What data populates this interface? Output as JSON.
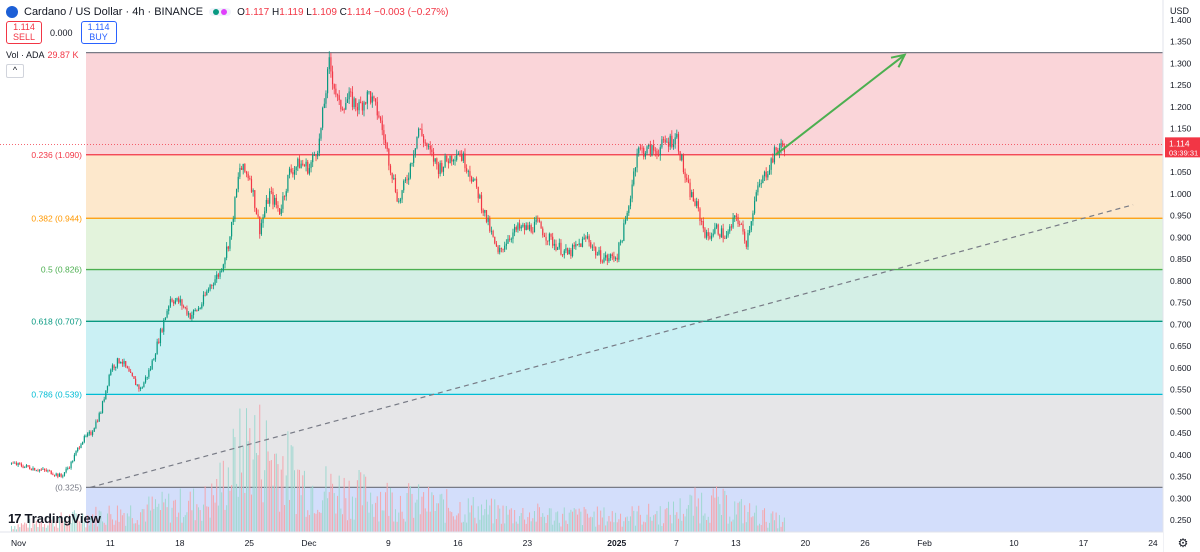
{
  "header": {
    "symbol": "Cardano / US Dollar · 4h · BINANCE",
    "ohlc": {
      "o_label": "O",
      "o": "1.117",
      "h_label": "H",
      "h": "1.119",
      "l_label": "L",
      "l": "1.109",
      "c_label": "C",
      "c": "1.114",
      "change": "−0.003 (−0.27%)"
    }
  },
  "trade": {
    "sell_price": "1.114",
    "sell_label": "SELL",
    "spread": "0.000",
    "buy_price": "1.114",
    "buy_label": "BUY"
  },
  "volume_indicator": {
    "label": "Vol · ADA",
    "value": "29.87 K"
  },
  "collapse_glyph": "^",
  "price_axis": {
    "currency": "USD"
  },
  "price_marker": {
    "price": "1.114",
    "countdown": "03:39:31",
    "color": "#f23645"
  },
  "branding": {
    "logo_mark": "17",
    "logo_text": "TradingView"
  },
  "settings_icon": "gear-icon",
  "chart_data": {
    "type": "candlestick",
    "price_ticks": [
      "1.400",
      "1.350",
      "1.300",
      "1.250",
      "1.200",
      "1.150",
      "1.100",
      "1.050",
      "1.000",
      "0.950",
      "0.900",
      "0.850",
      "0.800",
      "0.750",
      "0.700",
      "0.650",
      "0.600",
      "0.550",
      "0.500",
      "0.450",
      "0.400",
      "0.350",
      "0.300",
      "0.250"
    ],
    "time_ticks": [
      {
        "label": "Nov",
        "day": 0
      },
      {
        "label": "11",
        "day": 10
      },
      {
        "label": "18",
        "day": 17
      },
      {
        "label": "25",
        "day": 24
      },
      {
        "label": "Dec",
        "day": 30
      },
      {
        "label": "9",
        "day": 38
      },
      {
        "label": "16",
        "day": 45
      },
      {
        "label": "23",
        "day": 52
      },
      {
        "label": "2025",
        "day": 61
      },
      {
        "label": "7",
        "day": 67
      },
      {
        "label": "13",
        "day": 73
      },
      {
        "label": "20",
        "day": 80
      },
      {
        "label": "26",
        "day": 86
      },
      {
        "label": "Feb",
        "day": 92
      },
      {
        "label": "10",
        "day": 101
      },
      {
        "label": "17",
        "day": 108
      },
      {
        "label": "24",
        "day": 115
      }
    ],
    "fib_levels": [
      {
        "label": "",
        "price": 1.325,
        "color": "#787b86",
        "fill": "#fad5d9"
      },
      {
        "label": "0.236 (1.090)",
        "price": 1.09,
        "color": "#f23645",
        "fill": "#fde8cc"
      },
      {
        "label": "0.382 (0.944)",
        "price": 0.944,
        "color": "#ff9800",
        "fill": "#e3f3dc"
      },
      {
        "label": "0.5 (0.826)",
        "price": 0.826,
        "color": "#4caf50",
        "fill": "#d4efe6"
      },
      {
        "label": "0.618 (0.707)",
        "price": 0.707,
        "color": "#089981",
        "fill": "#caf0f4"
      },
      {
        "label": "0.786 (0.539)",
        "price": 0.539,
        "color": "#00bcd4",
        "fill": "#e6e6e8"
      },
      {
        "label": "(0.325)",
        "price": 0.325,
        "color": "#787b86",
        "fill": "#d3defb"
      }
    ],
    "trendline": {
      "day_start": 8,
      "price_start": 0.325,
      "day_end": 113,
      "price_end": 0.975,
      "color": "#787b86",
      "style": "dashed"
    },
    "arrow": {
      "day_start": 77,
      "price_start": 1.09,
      "day_end": 90,
      "price_end": 1.32,
      "color": "#4caf50"
    },
    "price_path": [
      [
        0,
        0.38
      ],
      [
        2,
        0.37
      ],
      [
        4,
        0.36
      ],
      [
        5,
        0.35
      ],
      [
        6,
        0.38
      ],
      [
        7,
        0.43
      ],
      [
        8,
        0.45
      ],
      [
        9,
        0.5
      ],
      [
        10,
        0.6
      ],
      [
        11,
        0.62
      ],
      [
        12,
        0.58
      ],
      [
        13,
        0.55
      ],
      [
        14,
        0.6
      ],
      [
        15,
        0.68
      ],
      [
        16,
        0.76
      ],
      [
        17,
        0.75
      ],
      [
        18,
        0.72
      ],
      [
        19,
        0.74
      ],
      [
        20,
        0.79
      ],
      [
        21,
        0.82
      ],
      [
        22,
        0.9
      ],
      [
        23,
        1.06
      ],
      [
        24,
        1.04
      ],
      [
        25,
        0.92
      ],
      [
        26,
        1.0
      ],
      [
        27,
        0.96
      ],
      [
        28,
        1.05
      ],
      [
        29,
        1.07
      ],
      [
        30,
        1.06
      ],
      [
        31,
        1.12
      ],
      [
        32,
        1.3
      ],
      [
        33,
        1.2
      ],
      [
        34,
        1.22
      ],
      [
        35,
        1.2
      ],
      [
        36,
        1.23
      ],
      [
        37,
        1.18
      ],
      [
        38,
        1.08
      ],
      [
        39,
        0.98
      ],
      [
        40,
        1.05
      ],
      [
        41,
        1.15
      ],
      [
        42,
        1.1
      ],
      [
        43,
        1.06
      ],
      [
        44,
        1.08
      ],
      [
        45,
        1.1
      ],
      [
        46,
        1.06
      ],
      [
        47,
        1.0
      ],
      [
        48,
        0.93
      ],
      [
        49,
        0.86
      ],
      [
        50,
        0.9
      ],
      [
        51,
        0.92
      ],
      [
        52,
        0.92
      ],
      [
        53,
        0.93
      ],
      [
        54,
        0.9
      ],
      [
        55,
        0.88
      ],
      [
        56,
        0.86
      ],
      [
        57,
        0.88
      ],
      [
        58,
        0.9
      ],
      [
        59,
        0.86
      ],
      [
        60,
        0.85
      ],
      [
        61,
        0.86
      ],
      [
        62,
        0.95
      ],
      [
        63,
        1.1
      ],
      [
        64,
        1.1
      ],
      [
        65,
        1.1
      ],
      [
        66,
        1.12
      ],
      [
        67,
        1.13
      ],
      [
        68,
        1.02
      ],
      [
        69,
        0.97
      ],
      [
        70,
        0.9
      ],
      [
        71,
        0.92
      ],
      [
        72,
        0.9
      ],
      [
        73,
        0.95
      ],
      [
        74,
        0.89
      ],
      [
        75,
        1.0
      ],
      [
        76,
        1.05
      ],
      [
        77,
        1.1
      ],
      [
        78,
        1.114
      ]
    ],
    "volume_path": [
      [
        0,
        0.02
      ],
      [
        10,
        0.06
      ],
      [
        20,
        0.1
      ],
      [
        24,
        0.3
      ],
      [
        30,
        0.15
      ],
      [
        40,
        0.1
      ],
      [
        50,
        0.06
      ],
      [
        60,
        0.05
      ],
      [
        66,
        0.06
      ],
      [
        70,
        0.1
      ],
      [
        78,
        0.03
      ]
    ]
  }
}
